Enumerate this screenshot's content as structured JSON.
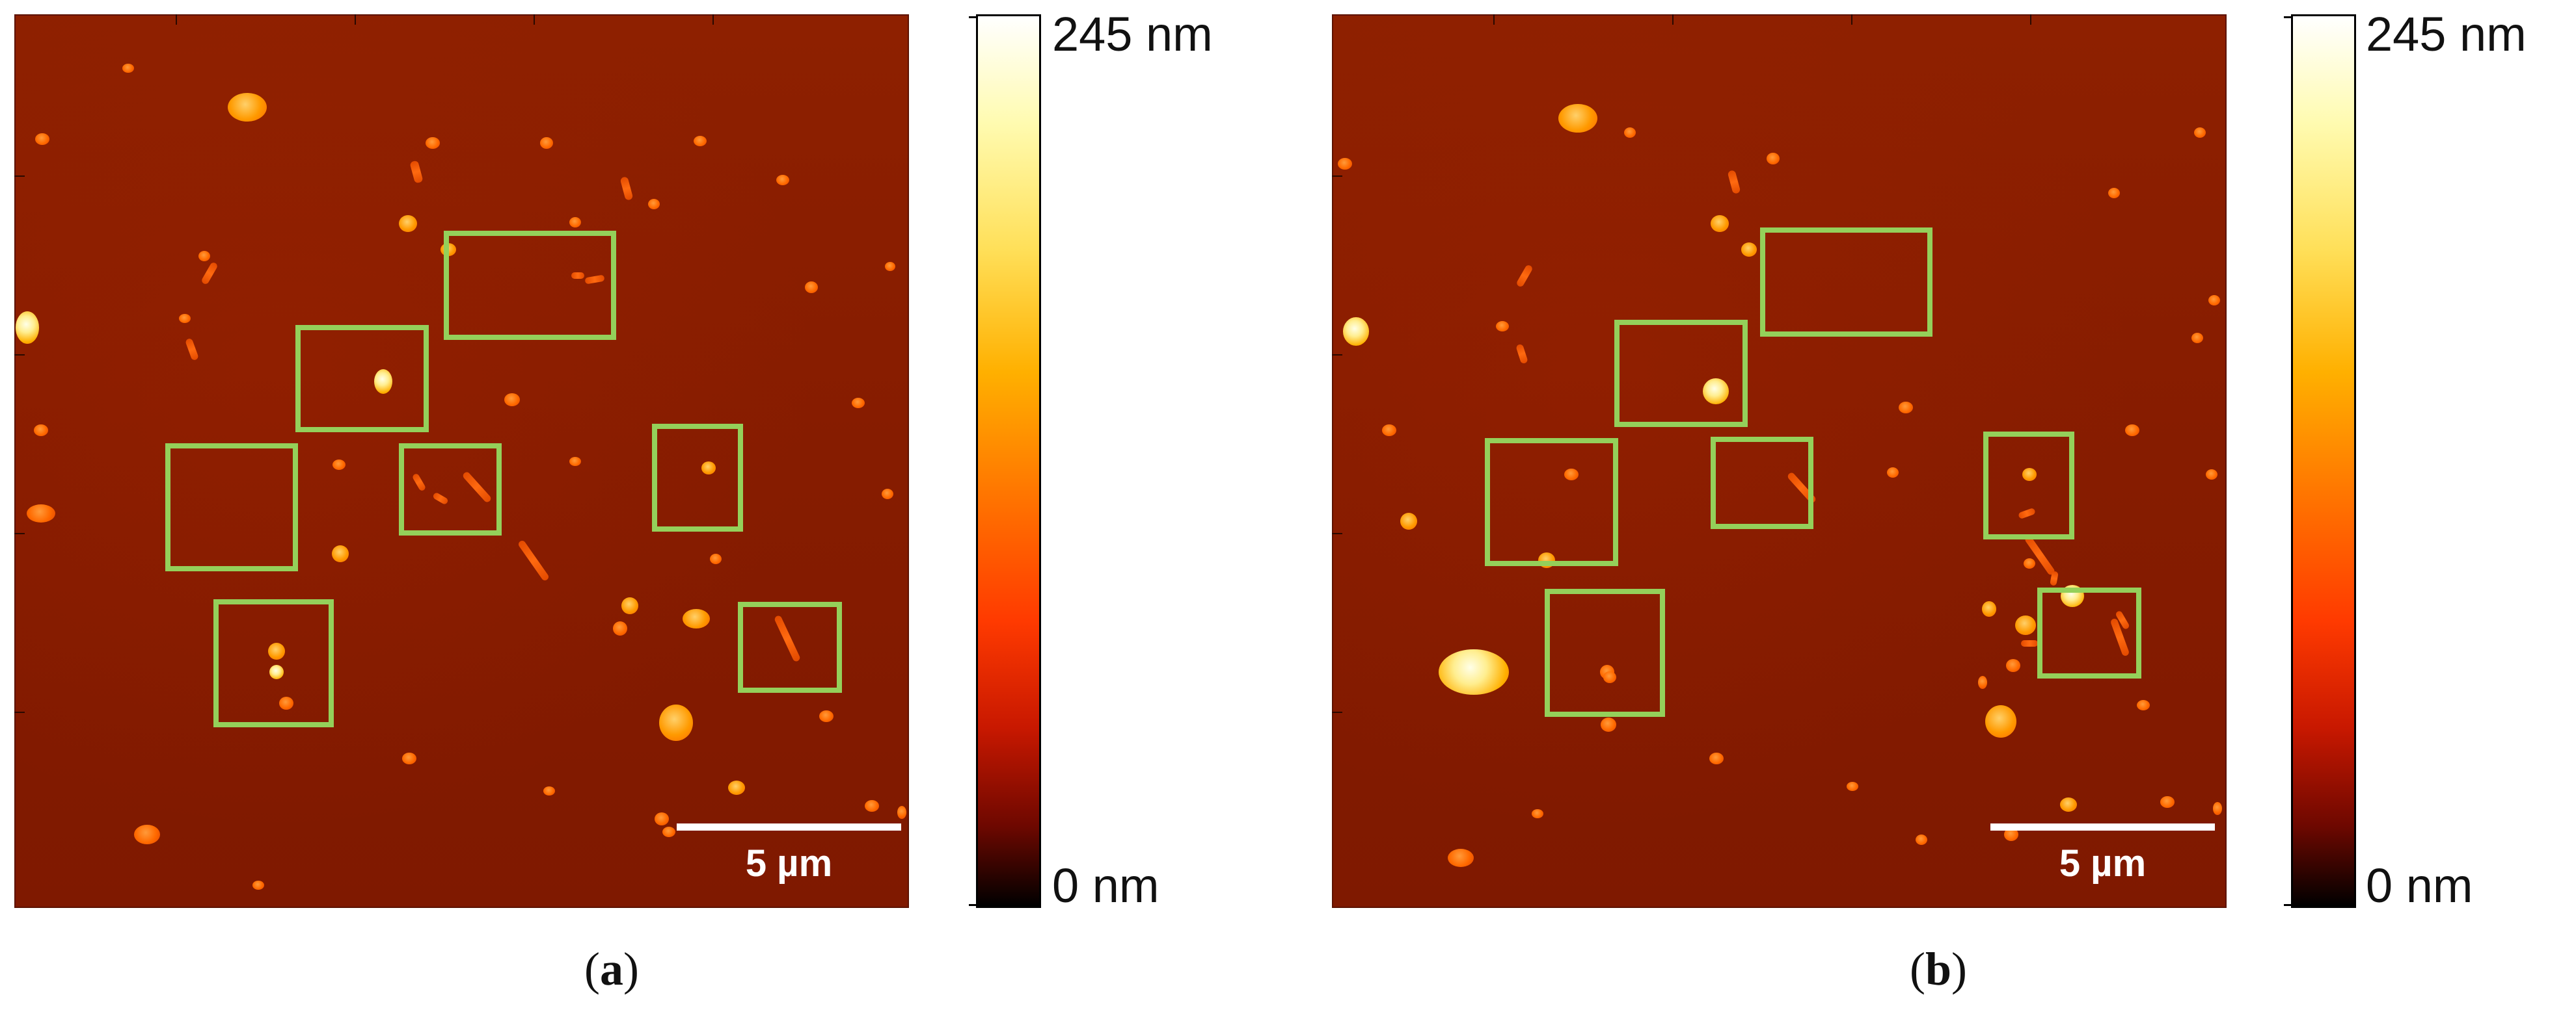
{
  "figure": {
    "panels": [
      {
        "id": "a",
        "caption_open": "(",
        "caption_letter": "a",
        "caption_close": ")",
        "scale_bar_label": "5 µm",
        "colorbar": {
          "max_label": "245 nm",
          "min_label": "0 nm"
        }
      },
      {
        "id": "b",
        "caption_open": "(",
        "caption_letter": "b",
        "caption_close": ")",
        "scale_bar_label": "5 µm",
        "colorbar": {
          "max_label": "245 nm",
          "min_label": "0 nm"
        }
      }
    ],
    "colors": {
      "box_outline": "#94d05a",
      "background": "#861c00",
      "colormap": [
        "#000000",
        "#6e0800",
        "#c81800",
        "#ff3a00",
        "#ff7000",
        "#ffb000",
        "#ffe05a",
        "#fffbb0",
        "#ffffff"
      ]
    },
    "colormap_name": "afmhot"
  }
}
